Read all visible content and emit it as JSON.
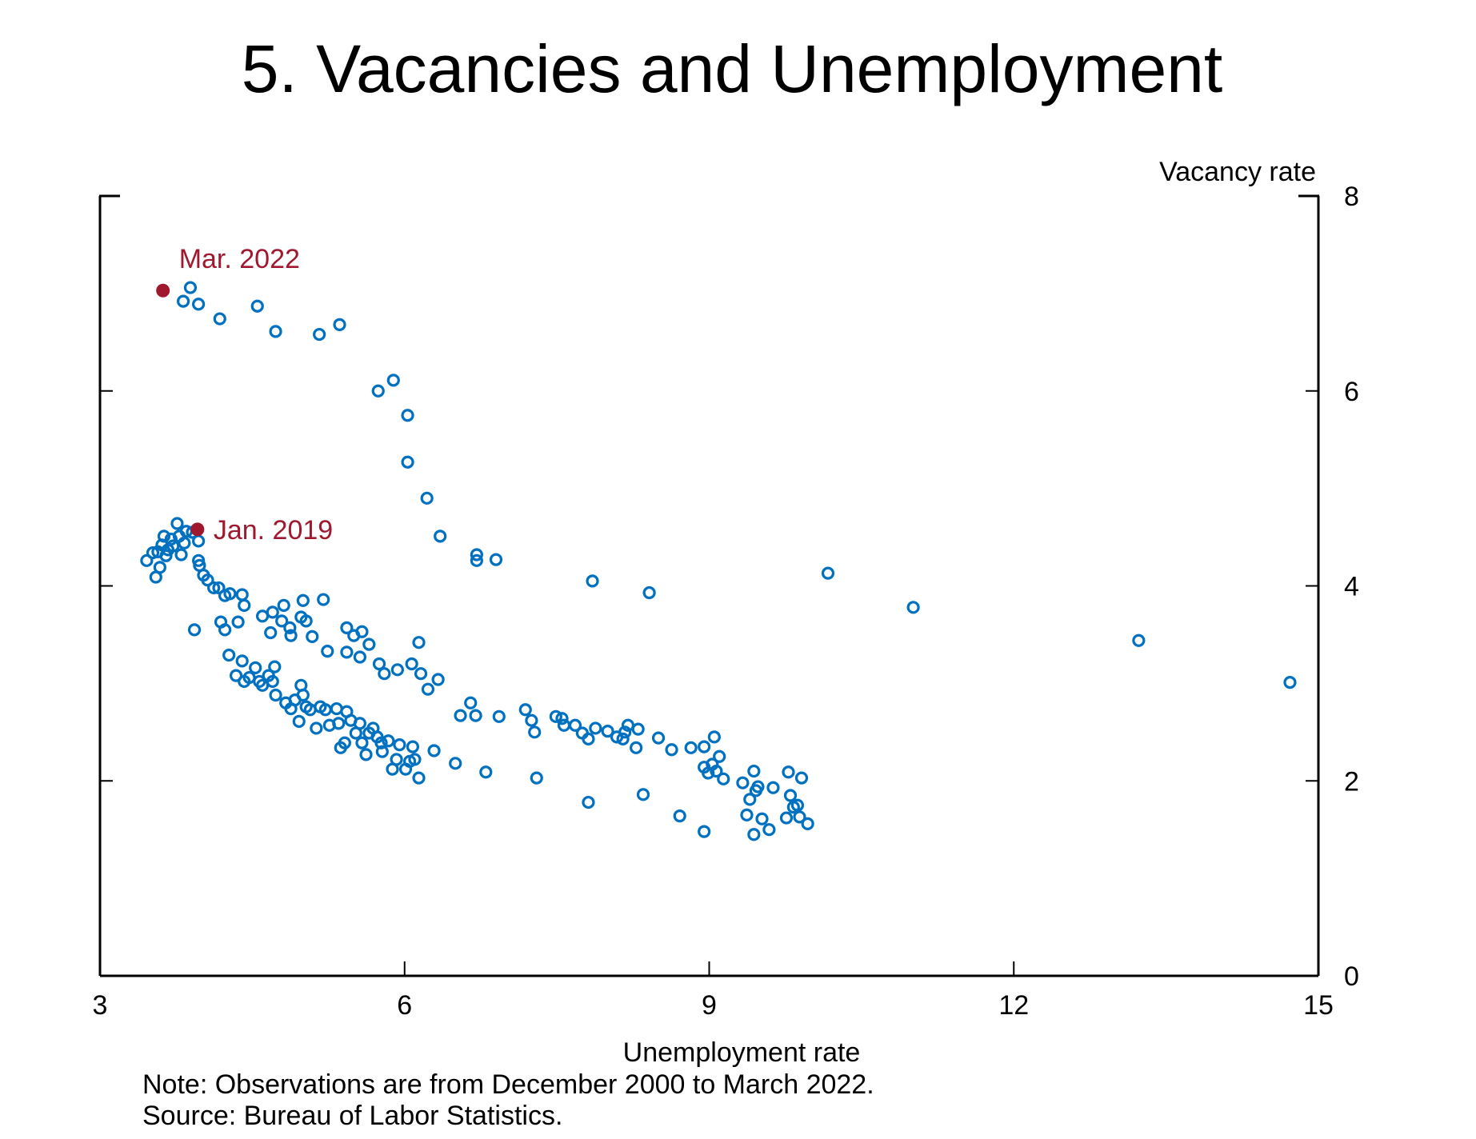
{
  "chart_data": {
    "type": "scatter",
    "title": "5.  Vacancies and Unemployment",
    "xlabel": "Unemployment rate",
    "ylabel": "Vacancy rate",
    "xlim": [
      3,
      15
    ],
    "ylim": [
      0,
      8
    ],
    "x_ticks": [
      "3",
      "6",
      "9",
      "12",
      "15"
    ],
    "y_ticks": [
      "0",
      "2",
      "4",
      "6",
      "8"
    ],
    "grid": false,
    "colors": {
      "points": "#0070C0",
      "highlight": "#A0182E"
    },
    "note": "Note: Observations are from December 2000 to March 2022.",
    "source": "Source: Bureau of Labor Statistics.",
    "highlights": [
      {
        "label": "Mar. 2022",
        "x": 3.62,
        "y": 7.03
      },
      {
        "label": "Jan. 2019",
        "x": 3.96,
        "y": 4.58
      }
    ],
    "points": [
      [
        3.89,
        7.06
      ],
      [
        3.82,
        6.92
      ],
      [
        3.97,
        6.89
      ],
      [
        4.18,
        6.74
      ],
      [
        4.55,
        6.87
      ],
      [
        4.73,
        6.61
      ],
      [
        5.16,
        6.58
      ],
      [
        5.36,
        6.68
      ],
      [
        5.74,
        6.0
      ],
      [
        5.89,
        6.11
      ],
      [
        6.03,
        5.75
      ],
      [
        6.03,
        5.27
      ],
      [
        6.22,
        4.9
      ],
      [
        6.35,
        4.51
      ],
      [
        6.71,
        4.32
      ],
      [
        6.71,
        4.26
      ],
      [
        6.9,
        4.27
      ],
      [
        7.85,
        4.05
      ],
      [
        8.41,
        3.93
      ],
      [
        10.17,
        4.13
      ],
      [
        11.01,
        3.78
      ],
      [
        13.23,
        3.44
      ],
      [
        14.72,
        3.01
      ],
      [
        3.46,
        4.26
      ],
      [
        3.52,
        4.34
      ],
      [
        3.55,
        4.09
      ],
      [
        3.59,
        4.19
      ],
      [
        3.61,
        4.42
      ],
      [
        3.63,
        4.51
      ],
      [
        3.67,
        4.37
      ],
      [
        3.7,
        4.48
      ],
      [
        3.76,
        4.64
      ],
      [
        3.78,
        4.51
      ],
      [
        3.8,
        4.32
      ],
      [
        3.83,
        4.44
      ],
      [
        3.85,
        4.56
      ],
      [
        3.91,
        4.55
      ],
      [
        3.97,
        4.46
      ],
      [
        3.65,
        4.31
      ],
      [
        3.72,
        4.41
      ],
      [
        3.57,
        4.35
      ],
      [
        3.97,
        4.26
      ],
      [
        3.98,
        4.21
      ],
      [
        4.02,
        4.11
      ],
      [
        4.06,
        4.06
      ],
      [
        4.12,
        3.98
      ],
      [
        4.17,
        3.98
      ],
      [
        4.23,
        3.9
      ],
      [
        4.28,
        3.92
      ],
      [
        4.4,
        3.91
      ],
      [
        4.42,
        3.8
      ],
      [
        4.19,
        3.63
      ],
      [
        4.23,
        3.55
      ],
      [
        3.93,
        3.55
      ],
      [
        4.36,
        3.63
      ],
      [
        4.6,
        3.69
      ],
      [
        4.7,
        3.73
      ],
      [
        4.81,
        3.8
      ],
      [
        4.68,
        3.52
      ],
      [
        4.79,
        3.64
      ],
      [
        4.87,
        3.57
      ],
      [
        4.88,
        3.49
      ],
      [
        5.0,
        3.85
      ],
      [
        4.98,
        3.68
      ],
      [
        5.03,
        3.64
      ],
      [
        5.09,
        3.48
      ],
      [
        5.2,
        3.86
      ],
      [
        5.24,
        3.33
      ],
      [
        5.43,
        3.57
      ],
      [
        5.5,
        3.49
      ],
      [
        5.58,
        3.53
      ],
      [
        5.65,
        3.4
      ],
      [
        5.43,
        3.32
      ],
      [
        5.56,
        3.27
      ],
      [
        5.75,
        3.2
      ],
      [
        5.8,
        3.1
      ],
      [
        5.93,
        3.14
      ],
      [
        6.07,
        3.2
      ],
      [
        6.14,
        3.42
      ],
      [
        6.16,
        3.1
      ],
      [
        6.23,
        2.94
      ],
      [
        6.33,
        3.04
      ],
      [
        4.27,
        3.29
      ],
      [
        4.34,
        3.08
      ],
      [
        4.4,
        3.23
      ],
      [
        4.42,
        3.02
      ],
      [
        4.47,
        3.06
      ],
      [
        4.53,
        3.16
      ],
      [
        4.57,
        3.02
      ],
      [
        4.6,
        2.98
      ],
      [
        4.66,
        3.08
      ],
      [
        4.72,
        3.17
      ],
      [
        4.73,
        2.88
      ],
      [
        4.7,
        3.02
      ],
      [
        4.83,
        2.8
      ],
      [
        4.88,
        2.74
      ],
      [
        4.92,
        2.83
      ],
      [
        4.98,
        2.98
      ],
      [
        4.96,
        2.61
      ],
      [
        5.0,
        2.88
      ],
      [
        5.03,
        2.76
      ],
      [
        5.07,
        2.73
      ],
      [
        5.13,
        2.54
      ],
      [
        5.17,
        2.76
      ],
      [
        5.22,
        2.73
      ],
      [
        5.26,
        2.57
      ],
      [
        5.33,
        2.74
      ],
      [
        5.35,
        2.59
      ],
      [
        5.37,
        2.34
      ],
      [
        5.43,
        2.71
      ],
      [
        5.41,
        2.39
      ],
      [
        5.47,
        2.62
      ],
      [
        5.52,
        2.49
      ],
      [
        5.56,
        2.59
      ],
      [
        5.58,
        2.39
      ],
      [
        5.62,
        2.27
      ],
      [
        5.65,
        2.49
      ],
      [
        5.69,
        2.54
      ],
      [
        5.73,
        2.45
      ],
      [
        5.77,
        2.39
      ],
      [
        5.78,
        2.3
      ],
      [
        5.84,
        2.41
      ],
      [
        5.88,
        2.12
      ],
      [
        5.92,
        2.22
      ],
      [
        5.95,
        2.37
      ],
      [
        6.01,
        2.12
      ],
      [
        6.05,
        2.2
      ],
      [
        6.08,
        2.35
      ],
      [
        6.1,
        2.22
      ],
      [
        6.14,
        2.03
      ],
      [
        6.29,
        2.31
      ],
      [
        6.5,
        2.18
      ],
      [
        6.8,
        2.09
      ],
      [
        6.55,
        2.67
      ],
      [
        6.65,
        2.8
      ],
      [
        6.7,
        2.67
      ],
      [
        6.93,
        2.66
      ],
      [
        7.19,
        2.73
      ],
      [
        7.25,
        2.62
      ],
      [
        7.28,
        2.5
      ],
      [
        7.3,
        2.03
      ],
      [
        7.49,
        2.66
      ],
      [
        7.55,
        2.64
      ],
      [
        7.57,
        2.57
      ],
      [
        7.68,
        2.57
      ],
      [
        7.75,
        2.49
      ],
      [
        7.81,
        2.43
      ],
      [
        7.88,
        2.54
      ],
      [
        8.0,
        2.51
      ],
      [
        8.09,
        2.45
      ],
      [
        8.15,
        2.43
      ],
      [
        8.17,
        2.5
      ],
      [
        8.2,
        2.57
      ],
      [
        8.28,
        2.34
      ],
      [
        8.3,
        2.53
      ],
      [
        8.5,
        2.44
      ],
      [
        8.63,
        2.32
      ],
      [
        8.82,
        2.34
      ],
      [
        8.95,
        2.35
      ],
      [
        9.05,
        2.45
      ],
      [
        7.81,
        1.78
      ],
      [
        8.35,
        1.86
      ],
      [
        8.71,
        1.64
      ],
      [
        8.95,
        1.48
      ],
      [
        8.95,
        2.14
      ],
      [
        8.99,
        2.08
      ],
      [
        9.03,
        2.17
      ],
      [
        9.07,
        2.1
      ],
      [
        9.1,
        2.25
      ],
      [
        9.14,
        2.02
      ],
      [
        9.33,
        1.98
      ],
      [
        9.37,
        1.65
      ],
      [
        9.4,
        1.81
      ],
      [
        9.44,
        2.1
      ],
      [
        9.46,
        1.9
      ],
      [
        9.48,
        1.94
      ],
      [
        9.52,
        1.61
      ],
      [
        9.44,
        1.45
      ],
      [
        9.59,
        1.5
      ],
      [
        9.63,
        1.93
      ],
      [
        9.76,
        1.62
      ],
      [
        9.78,
        2.09
      ],
      [
        9.8,
        1.85
      ],
      [
        9.83,
        1.73
      ],
      [
        9.87,
        1.75
      ],
      [
        9.89,
        1.63
      ],
      [
        9.91,
        2.03
      ],
      [
        9.97,
        1.56
      ]
    ]
  }
}
